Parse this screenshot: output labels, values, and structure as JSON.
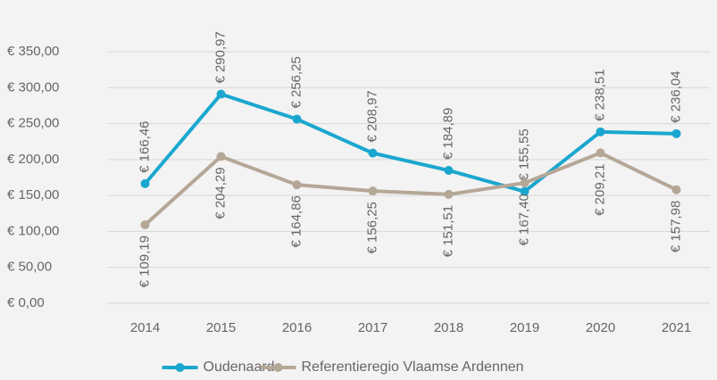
{
  "chart_data": {
    "type": "line",
    "categories": [
      "2014",
      "2015",
      "2016",
      "2017",
      "2018",
      "2019",
      "2020",
      "2021"
    ],
    "series": [
      {
        "name": "Oudenaarde",
        "color": "#1aa7cf",
        "values": [
          166.46,
          290.97,
          256.25,
          208.97,
          184.89,
          155.55,
          238.51,
          236.04
        ],
        "value_labels": [
          "€ 166,46",
          "€ 290,97",
          "€ 256,25",
          "€ 208,97",
          "€ 184,89",
          "€ 155,55",
          "€ 238,51",
          "€ 236,04"
        ]
      },
      {
        "name": "Referentieregio Vlaamse Ardennen",
        "color": "#b5a797",
        "values": [
          109.19,
          204.29,
          164.86,
          156.25,
          151.51,
          167.4,
          209.21,
          157.98
        ],
        "value_labels": [
          "€ 109,19",
          "€ 204,29",
          "€ 164,86",
          "€ 156,25",
          "€ 151,51",
          "€ 167,40",
          "€ 209,21",
          "€ 157,98"
        ]
      }
    ],
    "ylim": [
      0,
      350
    ],
    "yticks": [
      {
        "value": 0,
        "label": "€ 0,00"
      },
      {
        "value": 50,
        "label": "€ 50,00"
      },
      {
        "value": 100,
        "label": "€ 100,00"
      },
      {
        "value": 150,
        "label": "€ 150,00"
      },
      {
        "value": 200,
        "label": "€ 200,00"
      },
      {
        "value": 250,
        "label": "€ 250,00"
      },
      {
        "value": 300,
        "label": "€ 300,00"
      },
      {
        "value": 350,
        "label": "€ 350,00"
      }
    ],
    "grid": true
  }
}
